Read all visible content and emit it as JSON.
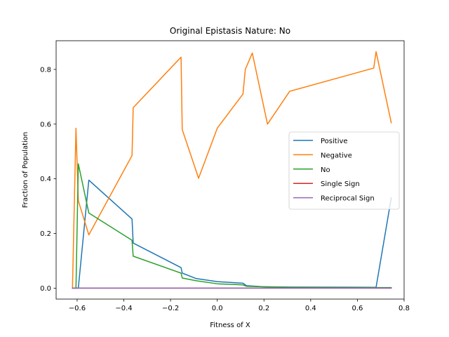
{
  "chart_data": {
    "type": "line",
    "title": "Original Epistasis Nature: No",
    "xlabel": "Fitness of X",
    "ylabel": "Fraction of Population",
    "xlim": [
      -0.69,
      0.8
    ],
    "ylim": [
      -0.04,
      0.905
    ],
    "xticks": [
      -0.6,
      -0.4,
      -0.2,
      0.0,
      0.2,
      0.4,
      0.6,
      0.8
    ],
    "xtick_labels": [
      "−0.6",
      "−0.4",
      "−0.2",
      "0.0",
      "0.2",
      "0.4",
      "0.6",
      "0.8"
    ],
    "yticks": [
      0.0,
      0.2,
      0.4,
      0.6,
      0.8
    ],
    "ytick_labels": [
      "0.0",
      "0.2",
      "0.4",
      "0.6",
      "0.8"
    ],
    "grid": false,
    "legend_position": "center-right",
    "series": [
      {
        "name": "Positive",
        "color": "#1f77b4",
        "points": [
          [
            -0.62,
            0.0
          ],
          [
            -0.605,
            0.0
          ],
          [
            -0.595,
            0.0
          ],
          [
            -0.55,
            0.395
          ],
          [
            -0.365,
            0.253
          ],
          [
            -0.36,
            0.165
          ],
          [
            -0.155,
            0.075
          ],
          [
            -0.15,
            0.055
          ],
          [
            -0.09,
            0.035
          ],
          [
            0.0,
            0.024
          ],
          [
            0.11,
            0.018
          ],
          [
            0.125,
            0.009
          ],
          [
            0.2,
            0.005
          ],
          [
            0.31,
            0.004
          ],
          [
            0.67,
            0.003
          ],
          [
            0.68,
            0.003
          ],
          [
            0.745,
            0.33
          ]
        ]
      },
      {
        "name": "Negative",
        "color": "#ff7f0e",
        "points": [
          [
            -0.62,
            0.0
          ],
          [
            -0.605,
            0.585
          ],
          [
            -0.595,
            0.32
          ],
          [
            -0.55,
            0.195
          ],
          [
            -0.365,
            0.485
          ],
          [
            -0.36,
            0.66
          ],
          [
            -0.155,
            0.845
          ],
          [
            -0.15,
            0.58
          ],
          [
            -0.08,
            0.402
          ],
          [
            0.0,
            0.585
          ],
          [
            0.11,
            0.71
          ],
          [
            0.12,
            0.8
          ],
          [
            0.15,
            0.86
          ],
          [
            0.215,
            0.6
          ],
          [
            0.31,
            0.72
          ],
          [
            0.67,
            0.805
          ],
          [
            0.68,
            0.865
          ],
          [
            0.745,
            0.605
          ]
        ]
      },
      {
        "name": "No",
        "color": "#2ca02c",
        "points": [
          [
            -0.62,
            0.0
          ],
          [
            -0.605,
            0.0
          ],
          [
            -0.595,
            0.455
          ],
          [
            -0.55,
            0.275
          ],
          [
            -0.365,
            0.175
          ],
          [
            -0.36,
            0.117
          ],
          [
            -0.155,
            0.055
          ],
          [
            -0.15,
            0.037
          ],
          [
            -0.09,
            0.027
          ],
          [
            0.0,
            0.016
          ],
          [
            0.11,
            0.012
          ],
          [
            0.125,
            0.007
          ],
          [
            0.2,
            0.005
          ],
          [
            0.31,
            0.003
          ],
          [
            0.67,
            0.002
          ],
          [
            0.745,
            0.002
          ]
        ]
      },
      {
        "name": "Single Sign",
        "color": "#d62728",
        "points": [
          [
            -0.62,
            0.0
          ],
          [
            0.745,
            0.0
          ]
        ]
      },
      {
        "name": "Reciprocal Sign",
        "color": "#9467bd",
        "points": [
          [
            -0.62,
            0.0
          ],
          [
            0.745,
            0.0
          ]
        ]
      }
    ]
  }
}
